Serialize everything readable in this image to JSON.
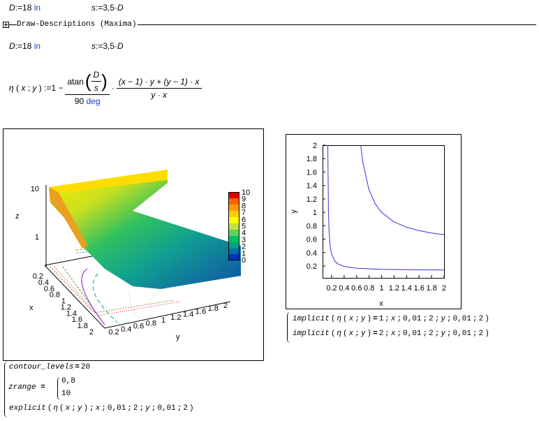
{
  "top": [
    "D",
    ":=",
    "18",
    "in",
    "s",
    ":=",
    "3,5",
    "·",
    "D"
  ],
  "region": {
    "title": "Draw-Descriptions (Maxima)",
    "defs": [
      "D",
      ":=",
      "18",
      "in",
      "s",
      ":=",
      "3,5",
      "·",
      "D"
    ],
    "eta": {
      "lhs": [
        "η",
        "(",
        "x",
        ";",
        "y",
        ")",
        ":=",
        "1",
        "−"
      ],
      "frac1_num": [
        "atan",
        "(",
        "D",
        "s",
        ")"
      ],
      "frac1_den": [
        "90",
        "deg"
      ],
      "dot": "·",
      "frac2_num": "(x − 1) · y + (y − 1) · x",
      "frac2_den": "y · x"
    }
  },
  "plot3d": {
    "z_label": "z",
    "x_label": "x",
    "y_label": "y",
    "z_ticks": [
      "10",
      "1"
    ],
    "x_ticks": [
      "0.2",
      "0.4",
      "0.6",
      "0.8",
      "1",
      "1.2",
      "1.4",
      "1.6",
      "1.8",
      "2"
    ],
    "y_ticks": [
      "0.2",
      "0.4",
      "0.6",
      "0.8",
      "1",
      "1.2",
      "1.4",
      "1.6",
      "1.8",
      "2"
    ],
    "colorbar_ticks": [
      "0",
      "1",
      "2",
      "3",
      "4",
      "5",
      "6",
      "7",
      "8",
      "9",
      "10"
    ]
  },
  "plot2d": {
    "x_label": "x",
    "y_label": "y",
    "x_ticks": [
      "0.2",
      "0.4",
      "0.6",
      "0.8",
      "1",
      "1.2",
      "1.4",
      "1.6",
      "1.8",
      "2"
    ],
    "y_ticks": [
      "0.2",
      "0.4",
      "0.6",
      "0.8",
      "1",
      "1.2",
      "1.4",
      "1.6",
      "1.8",
      "2"
    ]
  },
  "implicit": [
    [
      "implicit",
      "(",
      "η",
      "(",
      "x",
      ";",
      "y",
      ")",
      "=",
      "1",
      ";",
      "x",
      ";",
      "0,01",
      ";",
      "2",
      ";",
      "y",
      ";",
      "0,01",
      ";",
      "2",
      ")"
    ],
    [
      "implicit",
      "(",
      "η",
      "(",
      "x",
      ";",
      "y",
      ")",
      "=",
      "2",
      ";",
      "x",
      ";",
      "0,01",
      ";",
      "2",
      ";",
      "y",
      ";",
      "0,01",
      ";",
      "2",
      ")"
    ]
  ],
  "options": {
    "contour": [
      "contour_levels",
      "=",
      "20"
    ],
    "zrange_name": "zrange",
    "zrange_eq": "=",
    "zrange_values": [
      "0,8",
      "10"
    ],
    "explicit": [
      "explicit",
      "(",
      "η",
      "(",
      "x",
      ";",
      "y",
      ")",
      ";",
      "x",
      ";",
      "0,01",
      ";",
      "2",
      ";",
      "y",
      ";",
      "0,01",
      ";",
      "2",
      ")"
    ]
  }
}
